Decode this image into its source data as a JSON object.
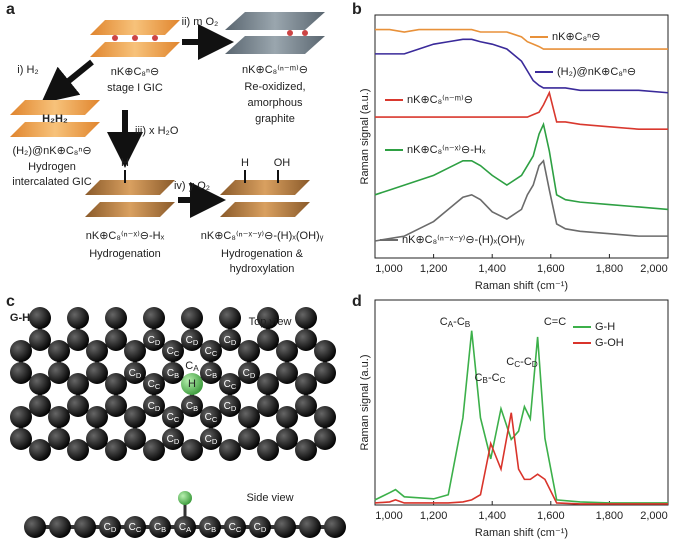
{
  "panel_labels": [
    "a",
    "b",
    "c",
    "d"
  ],
  "scheme": {
    "step_ii": "ii) m O₂",
    "start_formula": "nK⊕C₈ⁿ⊖",
    "start_name": "stage I GIC",
    "oxidized_formula": "nK⊕C₈⁽ⁿ⁻ᵐ⁾⊖",
    "oxidized_name": [
      "Re-oxidized,",
      "amorphous",
      "graphite"
    ],
    "step_i": "i) H₂",
    "intercalant": "H₂H₂",
    "intercalated_formula": "(H₂)@nK⊕C₈ⁿ⊖",
    "intercalated_name": [
      "Hydrogen",
      "intercalated GIC"
    ],
    "step_iii": "iii) x H₂O",
    "hydro_atom": "H",
    "hydro_formula": "nK⊕C₈⁽ⁿ⁻ˣ⁾⊖-Hₓ",
    "hydro_name": "Hydrogenation",
    "step_iv": "iv) y O₂",
    "hydroxy_atoms": [
      "H",
      "OH"
    ],
    "hydroxy_formula": "nK⊕C₈⁽ⁿ⁻ˣ⁻ʸ⁾⊖-(H)ₓ(OH)ᵧ",
    "hydroxy_name": [
      "Hydrogenation &",
      "hydroxylation"
    ]
  },
  "lattice": {
    "title": "G-H",
    "top_view": "Top view",
    "side_view": "Side view",
    "hydrogen": "H",
    "atom_labels": [
      [
        "C",
        "A"
      ],
      [
        "C",
        "B"
      ],
      [
        "C",
        "C"
      ],
      [
        "C",
        "D"
      ]
    ]
  },
  "chart_data": [
    {
      "type": "line",
      "xlabel": "Raman shift (cm⁻¹)",
      "ylabel": "Raman signal (a.u.)",
      "xlim": [
        1000,
        2000
      ],
      "ylim": [
        0,
        100
      ],
      "xticks": [
        {
          "value": 1000,
          "label": "1,000"
        },
        {
          "value": 1200,
          "label": "1,200"
        },
        {
          "value": 1400,
          "label": "1,400"
        },
        {
          "value": 1600,
          "label": "1,600"
        },
        {
          "value": 1800,
          "label": "1,800"
        },
        {
          "value": 2000,
          "label": "2,000"
        }
      ],
      "x": [
        1000,
        1050,
        1100,
        1150,
        1200,
        1250,
        1300,
        1330,
        1360,
        1400,
        1450,
        1500,
        1520,
        1540,
        1560,
        1575,
        1595,
        1620,
        1650,
        1700,
        1800,
        1900,
        2000
      ],
      "series": [
        {
          "name": "nK⊕C₈ⁿ⊖",
          "color": "#e8913a",
          "values": [
            94,
            94,
            93,
            94,
            94,
            94,
            94,
            94,
            93,
            93,
            93,
            91,
            89,
            88,
            87,
            86,
            86,
            86,
            86,
            86,
            86,
            86,
            86
          ]
        },
        {
          "name": "(H₂)@nK⊕C₈ⁿ⊖",
          "color": "#3a2a9a",
          "values": [
            84,
            84,
            84,
            86,
            88,
            89,
            90,
            90,
            89,
            88,
            86,
            81,
            77,
            73,
            71,
            70,
            70,
            70,
            70,
            69,
            69,
            69,
            68
          ]
        },
        {
          "name": "nK⊕C₈⁽ⁿ⁻ᵐ⁾⊖",
          "color": "#d9382e",
          "values": [
            58,
            58,
            58,
            58,
            58,
            58,
            58,
            58,
            58,
            58,
            58,
            58,
            58,
            59,
            60,
            63,
            68,
            56,
            56,
            55,
            54,
            53,
            53
          ]
        },
        {
          "name": "nK⊕C₈⁽ⁿ⁻ˣ⁾⊖-Hₓ",
          "color": "#2ea043",
          "values": [
            26,
            28,
            30,
            32,
            34,
            37,
            40,
            40,
            38,
            34,
            30,
            34,
            38,
            42,
            51,
            55,
            44,
            26,
            24,
            23,
            22,
            21,
            20
          ]
        },
        {
          "name": "nK⊕C₈⁽ⁿ⁻ˣ⁻ʸ⁾⊖-(H)ₓ(OH)ᵧ",
          "color": "#6b6b6b",
          "values": [
            7,
            8,
            9,
            12,
            15,
            20,
            25,
            26,
            24,
            19,
            16,
            20,
            26,
            30,
            38,
            40,
            28,
            14,
            12,
            11,
            10,
            9,
            9
          ]
        }
      ]
    },
    {
      "type": "line",
      "xlabel": "Raman shift (cm⁻¹)",
      "ylabel": "Raman signal (a.u.)",
      "xlim": [
        1000,
        2000
      ],
      "ylim": [
        0,
        100
      ],
      "legend": "upper right",
      "xticks": [
        {
          "value": 1000,
          "label": "1,000"
        },
        {
          "value": 1200,
          "label": "1,200"
        },
        {
          "value": 1400,
          "label": "1,400"
        },
        {
          "value": 1600,
          "label": "1,600"
        },
        {
          "value": 1800,
          "label": "1,800"
        },
        {
          "value": 2000,
          "label": "2,000"
        }
      ],
      "x": [
        1000,
        1050,
        1070,
        1100,
        1150,
        1200,
        1250,
        1300,
        1330,
        1360,
        1395,
        1430,
        1465,
        1490,
        1510,
        1530,
        1555,
        1580,
        1620,
        1700,
        1800,
        1900,
        2000
      ],
      "series": [
        {
          "name": "G-H",
          "color": "#3cb04a",
          "values": [
            2.5,
            6,
            7.5,
            4,
            3.5,
            3,
            5,
            42.5,
            85,
            42.5,
            22.5,
            47,
            32,
            36,
            48,
            42,
            82,
            32.5,
            2.5,
            1.5,
            1,
            1,
            1
          ]
        },
        {
          "name": "G-OH",
          "color": "#d9342b",
          "values": [
            1,
            1.5,
            2.5,
            1,
            1,
            1,
            1,
            1.5,
            2.5,
            5,
            30,
            17.5,
            45,
            17.5,
            12.5,
            12.5,
            15,
            12.5,
            1,
            0.5,
            0.5,
            0.5,
            0.5
          ]
        }
      ],
      "annotations": [
        [
          "C",
          "A",
          "-C",
          "B"
        ],
        [
          "C=C"
        ],
        [
          "C",
          "C",
          "-C",
          "D"
        ],
        [
          "C",
          "B",
          "-C",
          "C"
        ]
      ]
    }
  ]
}
